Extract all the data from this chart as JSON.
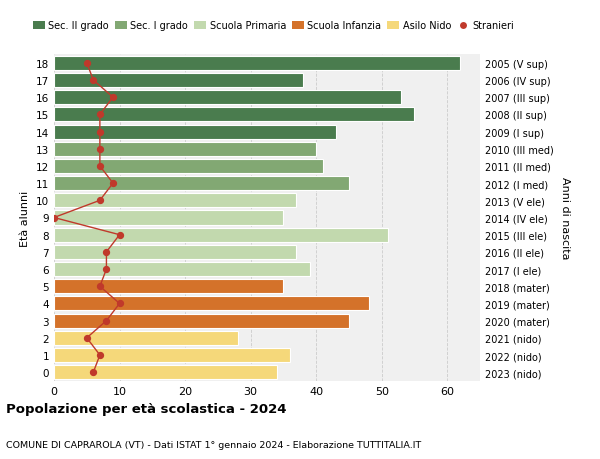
{
  "ages": [
    0,
    1,
    2,
    3,
    4,
    5,
    6,
    7,
    8,
    9,
    10,
    11,
    12,
    13,
    14,
    15,
    16,
    17,
    18
  ],
  "years": [
    "2023 (nido)",
    "2022 (nido)",
    "2021 (nido)",
    "2020 (mater)",
    "2019 (mater)",
    "2018 (mater)",
    "2017 (I ele)",
    "2016 (II ele)",
    "2015 (III ele)",
    "2014 (IV ele)",
    "2013 (V ele)",
    "2012 (I med)",
    "2011 (II med)",
    "2010 (III med)",
    "2009 (I sup)",
    "2008 (II sup)",
    "2007 (III sup)",
    "2006 (IV sup)",
    "2005 (V sup)"
  ],
  "bar_values": [
    34,
    36,
    28,
    45,
    48,
    35,
    39,
    37,
    51,
    35,
    37,
    45,
    41,
    40,
    43,
    55,
    53,
    38,
    62
  ],
  "bar_colors": [
    "#f5d87a",
    "#f5d87a",
    "#f5d87a",
    "#d4722a",
    "#d4722a",
    "#d4722a",
    "#c2d9ae",
    "#c2d9ae",
    "#c2d9ae",
    "#c2d9ae",
    "#c2d9ae",
    "#82a873",
    "#82a873",
    "#82a873",
    "#4a7c4e",
    "#4a7c4e",
    "#4a7c4e",
    "#4a7c4e",
    "#4a7c4e"
  ],
  "stranieri_values": [
    6,
    7,
    5,
    8,
    10,
    7,
    8,
    8,
    10,
    0,
    7,
    9,
    7,
    7,
    7,
    7,
    9,
    6,
    5
  ],
  "legend_labels": [
    "Sec. II grado",
    "Sec. I grado",
    "Scuola Primaria",
    "Scuola Infanzia",
    "Asilo Nido",
    "Stranieri"
  ],
  "legend_colors": [
    "#4a7c4e",
    "#82a873",
    "#c2d9ae",
    "#d4722a",
    "#f5d87a",
    "#c0392b"
  ],
  "title": "Popolazione per età scolastica - 2024",
  "subtitle": "COMUNE DI CAPRAROLA (VT) - Dati ISTAT 1° gennaio 2024 - Elaborazione TUTTITALIA.IT",
  "ylabel_left": "Età alunni",
  "ylabel_right": "Anni di nascita",
  "xlim": [
    0,
    65
  ],
  "xticks": [
    0,
    10,
    20,
    30,
    40,
    50,
    60
  ],
  "background_color": "#ffffff",
  "bar_bg_color": "#f0f0f0",
  "grid_color": "#cccccc",
  "stranieri_line_color": "#c0392b",
  "stranieri_dot_color": "#c0392b"
}
